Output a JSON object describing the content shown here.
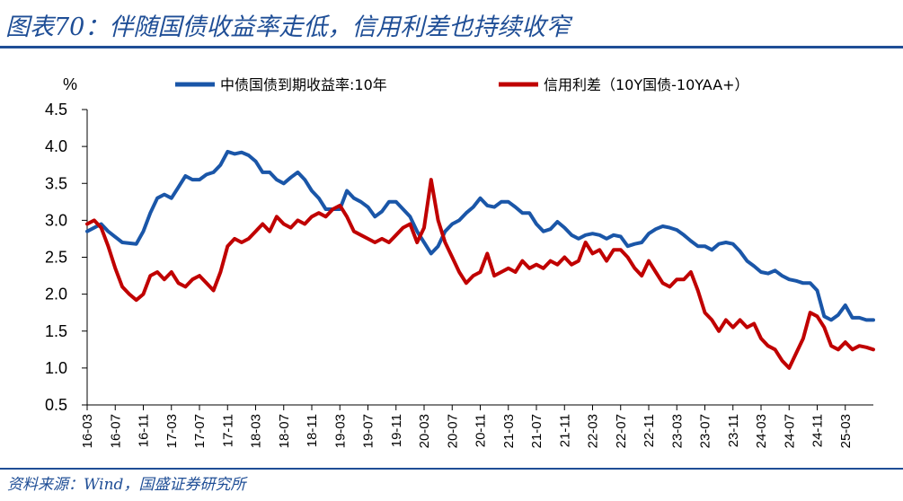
{
  "header": {
    "title": "图表70：伴随国债收益率走低，信用利差也持续收窄"
  },
  "footer": {
    "source": "资料来源：Wind，国盛证券研究所"
  },
  "colors": {
    "accent": "#1f4e96",
    "series_blue": "#1a56a8",
    "series_red": "#c00000"
  },
  "chart_data": {
    "type": "line",
    "ylabel": "%",
    "ylim": [
      0.5,
      4.5
    ],
    "yticks": [
      "4.5",
      "4.0",
      "3.5",
      "3.0",
      "2.5",
      "2.0",
      "1.5",
      "1.0",
      "0.5"
    ],
    "xlim": [
      "2016-03",
      "2025-07"
    ],
    "xticks": [
      "16-03",
      "16-07",
      "16-11",
      "17-03",
      "17-07",
      "17-11",
      "18-03",
      "18-07",
      "18-11",
      "19-03",
      "19-07",
      "19-11",
      "20-03",
      "20-07",
      "20-11",
      "21-03",
      "21-07",
      "21-11",
      "22-03",
      "22-07",
      "22-11",
      "23-03",
      "23-07",
      "23-11",
      "24-03",
      "24-07",
      "24-11",
      "25-03"
    ],
    "legend_position": "top",
    "grid": false,
    "series": [
      {
        "name": "中债国债到期收益率:10年",
        "color": "#1a56a8",
        "points": [
          [
            "2016-03",
            2.85
          ],
          [
            "2016-05",
            2.95
          ],
          [
            "2016-06",
            2.85
          ],
          [
            "2016-08",
            2.7
          ],
          [
            "2016-10",
            2.68
          ],
          [
            "2016-11",
            2.85
          ],
          [
            "2016-12",
            3.1
          ],
          [
            "2017-01",
            3.3
          ],
          [
            "2017-02",
            3.35
          ],
          [
            "2017-03",
            3.3
          ],
          [
            "2017-04",
            3.45
          ],
          [
            "2017-05",
            3.6
          ],
          [
            "2017-06",
            3.55
          ],
          [
            "2017-07",
            3.55
          ],
          [
            "2017-08",
            3.62
          ],
          [
            "2017-09",
            3.65
          ],
          [
            "2017-10",
            3.75
          ],
          [
            "2017-11",
            3.93
          ],
          [
            "2017-12",
            3.9
          ],
          [
            "2018-01",
            3.92
          ],
          [
            "2018-02",
            3.88
          ],
          [
            "2018-03",
            3.8
          ],
          [
            "2018-04",
            3.65
          ],
          [
            "2018-05",
            3.65
          ],
          [
            "2018-06",
            3.55
          ],
          [
            "2018-07",
            3.5
          ],
          [
            "2018-08",
            3.58
          ],
          [
            "2018-09",
            3.65
          ],
          [
            "2018-10",
            3.55
          ],
          [
            "2018-11",
            3.4
          ],
          [
            "2018-12",
            3.3
          ],
          [
            "2019-01",
            3.15
          ],
          [
            "2019-02",
            3.15
          ],
          [
            "2019-03",
            3.15
          ],
          [
            "2019-04",
            3.4
          ],
          [
            "2019-05",
            3.3
          ],
          [
            "2019-06",
            3.25
          ],
          [
            "2019-07",
            3.18
          ],
          [
            "2019-08",
            3.05
          ],
          [
            "2019-09",
            3.12
          ],
          [
            "2019-10",
            3.25
          ],
          [
            "2019-11",
            3.25
          ],
          [
            "2019-12",
            3.15
          ],
          [
            "2020-01",
            3.05
          ],
          [
            "2020-02",
            2.85
          ],
          [
            "2020-03",
            2.7
          ],
          [
            "2020-04",
            2.55
          ],
          [
            "2020-05",
            2.65
          ],
          [
            "2020-06",
            2.85
          ],
          [
            "2020-07",
            2.95
          ],
          [
            "2020-08",
            3.0
          ],
          [
            "2020-09",
            3.1
          ],
          [
            "2020-10",
            3.18
          ],
          [
            "2020-11",
            3.3
          ],
          [
            "2020-12",
            3.2
          ],
          [
            "2021-01",
            3.18
          ],
          [
            "2021-02",
            3.25
          ],
          [
            "2021-03",
            3.25
          ],
          [
            "2021-04",
            3.18
          ],
          [
            "2021-05",
            3.1
          ],
          [
            "2021-06",
            3.1
          ],
          [
            "2021-07",
            2.95
          ],
          [
            "2021-08",
            2.85
          ],
          [
            "2021-09",
            2.88
          ],
          [
            "2021-10",
            2.98
          ],
          [
            "2021-11",
            2.9
          ],
          [
            "2021-12",
            2.8
          ],
          [
            "2022-01",
            2.75
          ],
          [
            "2022-02",
            2.8
          ],
          [
            "2022-03",
            2.82
          ],
          [
            "2022-04",
            2.8
          ],
          [
            "2022-05",
            2.75
          ],
          [
            "2022-06",
            2.8
          ],
          [
            "2022-07",
            2.78
          ],
          [
            "2022-08",
            2.65
          ],
          [
            "2022-09",
            2.68
          ],
          [
            "2022-10",
            2.7
          ],
          [
            "2022-11",
            2.82
          ],
          [
            "2022-12",
            2.88
          ],
          [
            "2023-01",
            2.92
          ],
          [
            "2023-02",
            2.9
          ],
          [
            "2023-03",
            2.87
          ],
          [
            "2023-04",
            2.8
          ],
          [
            "2023-05",
            2.72
          ],
          [
            "2023-06",
            2.65
          ],
          [
            "2023-07",
            2.65
          ],
          [
            "2023-08",
            2.6
          ],
          [
            "2023-09",
            2.68
          ],
          [
            "2023-10",
            2.7
          ],
          [
            "2023-11",
            2.68
          ],
          [
            "2023-12",
            2.58
          ],
          [
            "2024-01",
            2.45
          ],
          [
            "2024-02",
            2.38
          ],
          [
            "2024-03",
            2.3
          ],
          [
            "2024-04",
            2.28
          ],
          [
            "2024-05",
            2.32
          ],
          [
            "2024-06",
            2.25
          ],
          [
            "2024-07",
            2.2
          ],
          [
            "2024-08",
            2.18
          ],
          [
            "2024-09",
            2.15
          ],
          [
            "2024-10",
            2.15
          ],
          [
            "2024-11",
            2.05
          ],
          [
            "2024-12",
            1.7
          ],
          [
            "2025-01",
            1.65
          ],
          [
            "2025-02",
            1.72
          ],
          [
            "2025-03",
            1.85
          ],
          [
            "2025-04",
            1.68
          ],
          [
            "2025-05",
            1.68
          ],
          [
            "2025-06",
            1.65
          ],
          [
            "2025-07",
            1.65
          ]
        ]
      },
      {
        "name": "信用利差（10Y国债-10YAA+）",
        "color": "#c00000",
        "points": [
          [
            "2016-03",
            2.95
          ],
          [
            "2016-04",
            3.0
          ],
          [
            "2016-05",
            2.9
          ],
          [
            "2016-06",
            2.65
          ],
          [
            "2016-07",
            2.35
          ],
          [
            "2016-08",
            2.1
          ],
          [
            "2016-09",
            2.0
          ],
          [
            "2016-10",
            1.92
          ],
          [
            "2016-11",
            2.0
          ],
          [
            "2016-12",
            2.25
          ],
          [
            "2017-01",
            2.3
          ],
          [
            "2017-02",
            2.2
          ],
          [
            "2017-03",
            2.3
          ],
          [
            "2017-04",
            2.15
          ],
          [
            "2017-05",
            2.1
          ],
          [
            "2017-06",
            2.2
          ],
          [
            "2017-07",
            2.25
          ],
          [
            "2017-08",
            2.15
          ],
          [
            "2017-09",
            2.05
          ],
          [
            "2017-10",
            2.3
          ],
          [
            "2017-11",
            2.65
          ],
          [
            "2017-12",
            2.75
          ],
          [
            "2018-01",
            2.7
          ],
          [
            "2018-02",
            2.75
          ],
          [
            "2018-03",
            2.85
          ],
          [
            "2018-04",
            2.95
          ],
          [
            "2018-05",
            2.85
          ],
          [
            "2018-06",
            3.05
          ],
          [
            "2018-07",
            2.95
          ],
          [
            "2018-08",
            2.9
          ],
          [
            "2018-09",
            3.0
          ],
          [
            "2018-10",
            2.95
          ],
          [
            "2018-11",
            3.05
          ],
          [
            "2018-12",
            3.1
          ],
          [
            "2019-01",
            3.05
          ],
          [
            "2019-02",
            3.15
          ],
          [
            "2019-03",
            3.2
          ],
          [
            "2019-04",
            3.05
          ],
          [
            "2019-05",
            2.85
          ],
          [
            "2019-06",
            2.8
          ],
          [
            "2019-07",
            2.75
          ],
          [
            "2019-08",
            2.7
          ],
          [
            "2019-09",
            2.75
          ],
          [
            "2019-10",
            2.7
          ],
          [
            "2019-11",
            2.8
          ],
          [
            "2019-12",
            2.9
          ],
          [
            "2020-01",
            2.95
          ],
          [
            "2020-02",
            2.7
          ],
          [
            "2020-03",
            2.9
          ],
          [
            "2020-04",
            3.55
          ],
          [
            "2020-05",
            3.0
          ],
          [
            "2020-06",
            2.7
          ],
          [
            "2020-07",
            2.5
          ],
          [
            "2020-08",
            2.3
          ],
          [
            "2020-09",
            2.15
          ],
          [
            "2020-10",
            2.25
          ],
          [
            "2020-11",
            2.3
          ],
          [
            "2020-12",
            2.55
          ],
          [
            "2021-01",
            2.25
          ],
          [
            "2021-02",
            2.3
          ],
          [
            "2021-03",
            2.35
          ],
          [
            "2021-04",
            2.3
          ],
          [
            "2021-05",
            2.45
          ],
          [
            "2021-06",
            2.35
          ],
          [
            "2021-07",
            2.4
          ],
          [
            "2021-08",
            2.35
          ],
          [
            "2021-09",
            2.45
          ],
          [
            "2021-10",
            2.4
          ],
          [
            "2021-11",
            2.5
          ],
          [
            "2021-12",
            2.4
          ],
          [
            "2022-01",
            2.45
          ],
          [
            "2022-02",
            2.7
          ],
          [
            "2022-03",
            2.55
          ],
          [
            "2022-04",
            2.6
          ],
          [
            "2022-05",
            2.45
          ],
          [
            "2022-06",
            2.6
          ],
          [
            "2022-07",
            2.6
          ],
          [
            "2022-08",
            2.5
          ],
          [
            "2022-09",
            2.35
          ],
          [
            "2022-10",
            2.25
          ],
          [
            "2022-11",
            2.45
          ],
          [
            "2022-12",
            2.3
          ],
          [
            "2023-01",
            2.15
          ],
          [
            "2023-02",
            2.1
          ],
          [
            "2023-03",
            2.2
          ],
          [
            "2023-04",
            2.2
          ],
          [
            "2023-05",
            2.3
          ],
          [
            "2023-06",
            2.05
          ],
          [
            "2023-07",
            1.75
          ],
          [
            "2023-08",
            1.65
          ],
          [
            "2023-09",
            1.5
          ],
          [
            "2023-10",
            1.65
          ],
          [
            "2023-11",
            1.55
          ],
          [
            "2023-12",
            1.65
          ],
          [
            "2024-01",
            1.55
          ],
          [
            "2024-02",
            1.6
          ],
          [
            "2024-03",
            1.4
          ],
          [
            "2024-04",
            1.3
          ],
          [
            "2024-05",
            1.25
          ],
          [
            "2024-06",
            1.1
          ],
          [
            "2024-07",
            1.0
          ],
          [
            "2024-08",
            1.2
          ],
          [
            "2024-09",
            1.4
          ],
          [
            "2024-10",
            1.75
          ],
          [
            "2024-11",
            1.7
          ],
          [
            "2024-12",
            1.55
          ],
          [
            "2025-01",
            1.3
          ],
          [
            "2025-02",
            1.25
          ],
          [
            "2025-03",
            1.35
          ],
          [
            "2025-04",
            1.25
          ],
          [
            "2025-05",
            1.3
          ],
          [
            "2025-06",
            1.28
          ],
          [
            "2025-07",
            1.25
          ]
        ]
      }
    ]
  }
}
